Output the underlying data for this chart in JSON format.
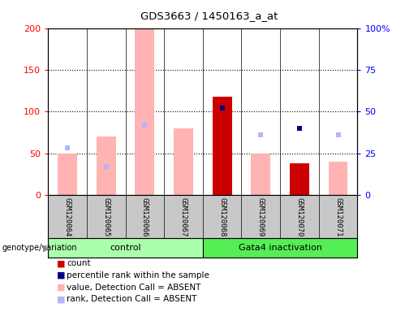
{
  "title": "GDS3663 / 1450163_a_at",
  "samples": [
    "GSM120064",
    "GSM120065",
    "GSM120066",
    "GSM120067",
    "GSM120068",
    "GSM120069",
    "GSM120070",
    "GSM120071"
  ],
  "value_absent": [
    50,
    70,
    200,
    80,
    null,
    50,
    null,
    40
  ],
  "rank_absent_pct": [
    28,
    17,
    42,
    null,
    null,
    36,
    null,
    36
  ],
  "count": [
    null,
    null,
    null,
    null,
    118,
    null,
    38,
    null
  ],
  "percentile_rank_pct": [
    null,
    null,
    null,
    null,
    52,
    null,
    40,
    null
  ],
  "ylim_left": [
    0,
    200
  ],
  "ylim_right": [
    0,
    100
  ],
  "yticks_left": [
    0,
    50,
    100,
    150,
    200
  ],
  "yticks_right": [
    0,
    25,
    50,
    75,
    100
  ],
  "ytick_labels_right": [
    "0",
    "25",
    "50",
    "75",
    "100%"
  ],
  "color_count": "#cc0000",
  "color_percentile": "#00008b",
  "color_value_absent": "#ffb3b3",
  "color_rank_absent": "#b3b3ff",
  "legend_items": [
    "count",
    "percentile rank within the sample",
    "value, Detection Call = ABSENT",
    "rank, Detection Call = ABSENT"
  ]
}
